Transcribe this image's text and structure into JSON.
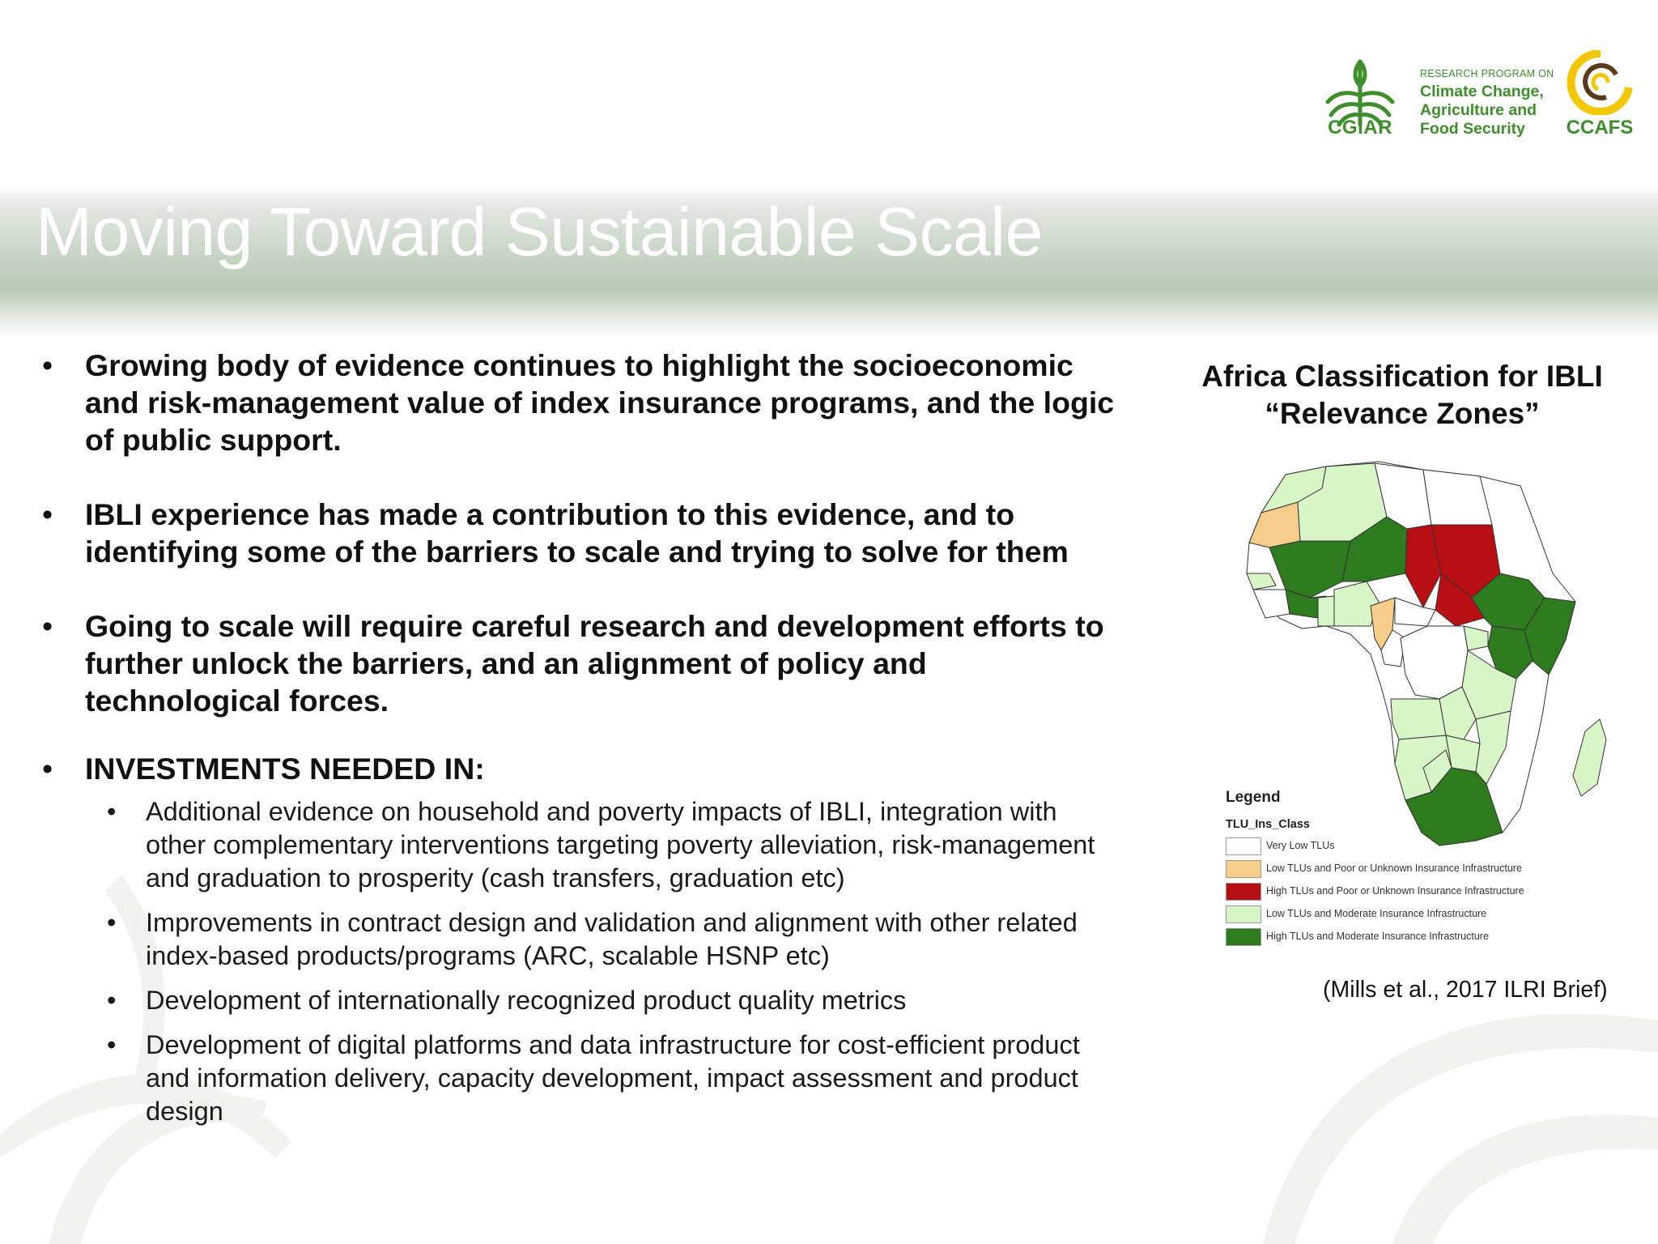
{
  "slide_title": "Moving Toward Sustainable Scale",
  "logos": {
    "cgiar_text": "CGIAR",
    "program_small": "RESEARCH PROGRAM ON",
    "program_lines": [
      "Climate Change,",
      "Agriculture and",
      "Food Security"
    ],
    "ccafs_text": "CCAFS",
    "brand_green": "#3f8d2c",
    "brand_yellow": "#f2c600"
  },
  "bullets": [
    "Growing body of evidence continues to highlight the socioeconomic and risk-management value of index insurance programs, and the logic of public support.",
    "IBLI experience has made a contribution to this evidence, and to identifying some of the barriers to scale and trying to solve for them",
    "Going to scale will require careful research and development efforts to further unlock the barriers, and an alignment of policy and technological forces."
  ],
  "investments": {
    "heading": "INVESTMENTS NEEDED IN:",
    "items": [
      "Additional evidence on household and poverty impacts of IBLI, integration with other complementary interventions targeting poverty alleviation, risk-management and graduation to prosperity (cash transfers, graduation etc)",
      "Improvements in contract design and validation and alignment with other related index-based products/programs (ARC, scalable HSNP etc)",
      "Development of internationally recognized product quality metrics",
      "Development of digital platforms and data infrastructure for cost-efficient product and information delivery, capacity development, impact assessment and product design"
    ]
  },
  "bullet_symbol": "•",
  "map": {
    "title_line1": "Africa Classification for IBLI",
    "title_line2": "“Relevance Zones”",
    "legend_title": "Legend",
    "legend_class": "TLU_Ins_Class",
    "legend_items": [
      {
        "label": "Very Low TLUs",
        "color": "#ffffff"
      },
      {
        "label": "Low TLUs and Poor or Unknown Insurance Infrastructure",
        "color": "#f7cd8a"
      },
      {
        "label": "High TLUs and Poor or Unknown Insurance Infrastructure",
        "color": "#b80f14"
      },
      {
        "label": "Low TLUs and Moderate Insurance Infrastructure",
        "color": "#d8f5c8"
      },
      {
        "label": "High TLUs and Moderate Insurance Infrastructure",
        "color": "#2e7a1e"
      }
    ]
  },
  "citation": "(Mills et al.,  2017 ILRI Brief)"
}
